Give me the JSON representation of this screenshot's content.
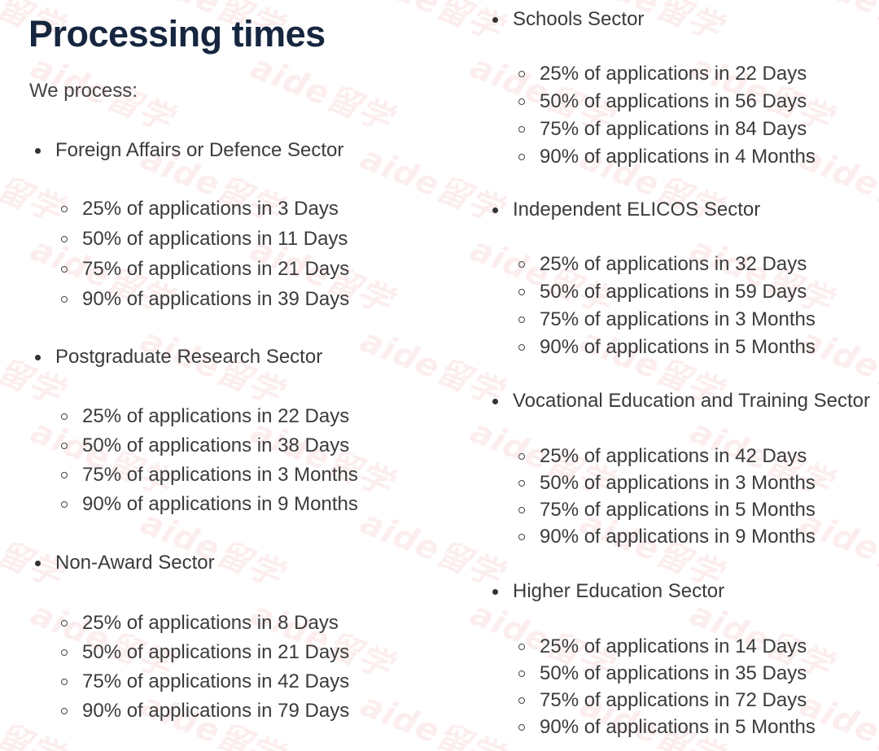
{
  "page": {
    "title": "Processing times",
    "intro": "We process:"
  },
  "watermark": {
    "text": "aide留学",
    "color": "#e24646"
  },
  "sectors": [
    {
      "name": "Foreign Affairs or Defence Sector",
      "items": [
        "25% of applications in 3 Days",
        "50% of applications in 11 Days",
        "75% of applications in 21 Days",
        "90% of applications in 39 Days"
      ]
    },
    {
      "name": "Postgraduate Research Sector",
      "items": [
        "25% of applications in 22 Days",
        "50% of applications in 38 Days",
        "75% of applications in 3 Months",
        "90% of applications in 9 Months"
      ]
    },
    {
      "name": "Non-Award Sector",
      "items": [
        "25% of applications in 8 Days",
        "50% of applications in 21 Days",
        "75% of applications in 42 Days",
        "90% of applications in 79 Days"
      ]
    },
    {
      "name": "Schools Sector",
      "items": [
        "25% of applications in 22 Days",
        "50% of applications in 56 Days",
        "75% of applications in 84 Days",
        "90% of applications in 4 Months"
      ]
    },
    {
      "name": "Independent ELICOS Sector",
      "items": [
        "25% of applications in 32 Days",
        "50% of applications in 59 Days",
        "75% of applications in 3 Months",
        "90% of applications in 5 Months"
      ]
    },
    {
      "name": "Vocational Education and Training Sector",
      "items": [
        "25% of applications in 42 Days",
        "50% of applications in 3 Months",
        "75% of applications in 5 Months",
        "90% of applications in 9 Months"
      ]
    },
    {
      "name": "Higher Education Sector",
      "items": [
        "25% of applications in 14 Days",
        "50% of applications in 35 Days",
        "75% of applications in 72 Days",
        "90% of applications in 5 Months"
      ]
    }
  ]
}
